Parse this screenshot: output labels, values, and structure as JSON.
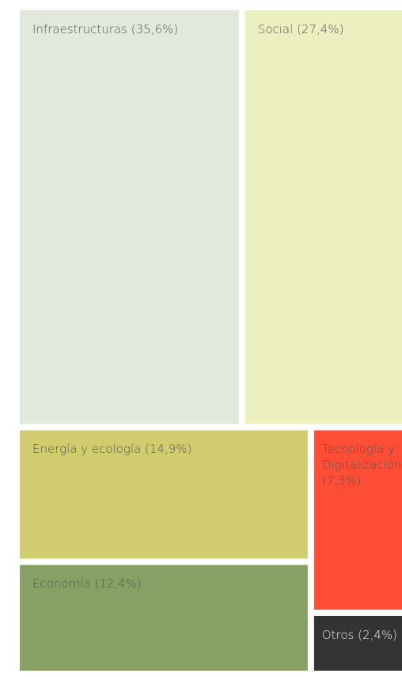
{
  "chart_data": {
    "type": "treemap",
    "categories": [
      "Infraestructuras",
      "Social",
      "Energía y ecología",
      "Economía",
      "Tecnología y Digitalización",
      "Otros"
    ],
    "values": [
      35.6,
      27.4,
      14.9,
      12.4,
      7.3,
      2.4
    ],
    "value_labels": [
      "(35,6%)",
      "(27,4%)",
      "(14,9%)",
      "(12,4%)",
      "(7,3%)",
      "(2,4%)"
    ],
    "colors": [
      "#e1e9da",
      "#ecf0c0",
      "#d1cd6e",
      "#87a066",
      "#ff4d36",
      "#333333"
    ]
  }
}
